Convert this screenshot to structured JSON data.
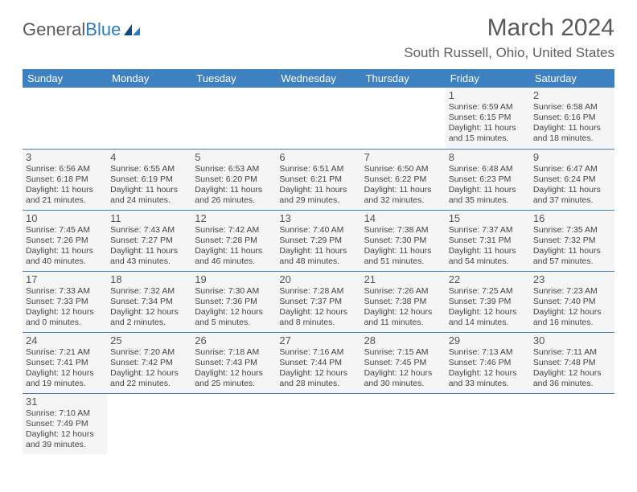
{
  "logo": {
    "text1": "General",
    "text2": "Blue"
  },
  "title": "March 2024",
  "location": "South Russell, Ohio, United States",
  "colors": {
    "header_bg": "#3e81c0",
    "header_fg": "#ffffff",
    "cell_bg": "#f5f5f5",
    "border": "#3e81c0",
    "text": "#444444",
    "logo_blue": "#2b7bbf",
    "title_color": "#5a5a5a"
  },
  "daynames": [
    "Sunday",
    "Monday",
    "Tuesday",
    "Wednesday",
    "Thursday",
    "Friday",
    "Saturday"
  ],
  "weeks": [
    [
      null,
      null,
      null,
      null,
      null,
      {
        "n": "1",
        "sr": "Sunrise: 6:59 AM",
        "ss": "Sunset: 6:15 PM",
        "d1": "Daylight: 11 hours",
        "d2": "and 15 minutes."
      },
      {
        "n": "2",
        "sr": "Sunrise: 6:58 AM",
        "ss": "Sunset: 6:16 PM",
        "d1": "Daylight: 11 hours",
        "d2": "and 18 minutes."
      }
    ],
    [
      {
        "n": "3",
        "sr": "Sunrise: 6:56 AM",
        "ss": "Sunset: 6:18 PM",
        "d1": "Daylight: 11 hours",
        "d2": "and 21 minutes."
      },
      {
        "n": "4",
        "sr": "Sunrise: 6:55 AM",
        "ss": "Sunset: 6:19 PM",
        "d1": "Daylight: 11 hours",
        "d2": "and 24 minutes."
      },
      {
        "n": "5",
        "sr": "Sunrise: 6:53 AM",
        "ss": "Sunset: 6:20 PM",
        "d1": "Daylight: 11 hours",
        "d2": "and 26 minutes."
      },
      {
        "n": "6",
        "sr": "Sunrise: 6:51 AM",
        "ss": "Sunset: 6:21 PM",
        "d1": "Daylight: 11 hours",
        "d2": "and 29 minutes."
      },
      {
        "n": "7",
        "sr": "Sunrise: 6:50 AM",
        "ss": "Sunset: 6:22 PM",
        "d1": "Daylight: 11 hours",
        "d2": "and 32 minutes."
      },
      {
        "n": "8",
        "sr": "Sunrise: 6:48 AM",
        "ss": "Sunset: 6:23 PM",
        "d1": "Daylight: 11 hours",
        "d2": "and 35 minutes."
      },
      {
        "n": "9",
        "sr": "Sunrise: 6:47 AM",
        "ss": "Sunset: 6:24 PM",
        "d1": "Daylight: 11 hours",
        "d2": "and 37 minutes."
      }
    ],
    [
      {
        "n": "10",
        "sr": "Sunrise: 7:45 AM",
        "ss": "Sunset: 7:26 PM",
        "d1": "Daylight: 11 hours",
        "d2": "and 40 minutes."
      },
      {
        "n": "11",
        "sr": "Sunrise: 7:43 AM",
        "ss": "Sunset: 7:27 PM",
        "d1": "Daylight: 11 hours",
        "d2": "and 43 minutes."
      },
      {
        "n": "12",
        "sr": "Sunrise: 7:42 AM",
        "ss": "Sunset: 7:28 PM",
        "d1": "Daylight: 11 hours",
        "d2": "and 46 minutes."
      },
      {
        "n": "13",
        "sr": "Sunrise: 7:40 AM",
        "ss": "Sunset: 7:29 PM",
        "d1": "Daylight: 11 hours",
        "d2": "and 48 minutes."
      },
      {
        "n": "14",
        "sr": "Sunrise: 7:38 AM",
        "ss": "Sunset: 7:30 PM",
        "d1": "Daylight: 11 hours",
        "d2": "and 51 minutes."
      },
      {
        "n": "15",
        "sr": "Sunrise: 7:37 AM",
        "ss": "Sunset: 7:31 PM",
        "d1": "Daylight: 11 hours",
        "d2": "and 54 minutes."
      },
      {
        "n": "16",
        "sr": "Sunrise: 7:35 AM",
        "ss": "Sunset: 7:32 PM",
        "d1": "Daylight: 11 hours",
        "d2": "and 57 minutes."
      }
    ],
    [
      {
        "n": "17",
        "sr": "Sunrise: 7:33 AM",
        "ss": "Sunset: 7:33 PM",
        "d1": "Daylight: 12 hours",
        "d2": "and 0 minutes."
      },
      {
        "n": "18",
        "sr": "Sunrise: 7:32 AM",
        "ss": "Sunset: 7:34 PM",
        "d1": "Daylight: 12 hours",
        "d2": "and 2 minutes."
      },
      {
        "n": "19",
        "sr": "Sunrise: 7:30 AM",
        "ss": "Sunset: 7:36 PM",
        "d1": "Daylight: 12 hours",
        "d2": "and 5 minutes."
      },
      {
        "n": "20",
        "sr": "Sunrise: 7:28 AM",
        "ss": "Sunset: 7:37 PM",
        "d1": "Daylight: 12 hours",
        "d2": "and 8 minutes."
      },
      {
        "n": "21",
        "sr": "Sunrise: 7:26 AM",
        "ss": "Sunset: 7:38 PM",
        "d1": "Daylight: 12 hours",
        "d2": "and 11 minutes."
      },
      {
        "n": "22",
        "sr": "Sunrise: 7:25 AM",
        "ss": "Sunset: 7:39 PM",
        "d1": "Daylight: 12 hours",
        "d2": "and 14 minutes."
      },
      {
        "n": "23",
        "sr": "Sunrise: 7:23 AM",
        "ss": "Sunset: 7:40 PM",
        "d1": "Daylight: 12 hours",
        "d2": "and 16 minutes."
      }
    ],
    [
      {
        "n": "24",
        "sr": "Sunrise: 7:21 AM",
        "ss": "Sunset: 7:41 PM",
        "d1": "Daylight: 12 hours",
        "d2": "and 19 minutes."
      },
      {
        "n": "25",
        "sr": "Sunrise: 7:20 AM",
        "ss": "Sunset: 7:42 PM",
        "d1": "Daylight: 12 hours",
        "d2": "and 22 minutes."
      },
      {
        "n": "26",
        "sr": "Sunrise: 7:18 AM",
        "ss": "Sunset: 7:43 PM",
        "d1": "Daylight: 12 hours",
        "d2": "and 25 minutes."
      },
      {
        "n": "27",
        "sr": "Sunrise: 7:16 AM",
        "ss": "Sunset: 7:44 PM",
        "d1": "Daylight: 12 hours",
        "d2": "and 28 minutes."
      },
      {
        "n": "28",
        "sr": "Sunrise: 7:15 AM",
        "ss": "Sunset: 7:45 PM",
        "d1": "Daylight: 12 hours",
        "d2": "and 30 minutes."
      },
      {
        "n": "29",
        "sr": "Sunrise: 7:13 AM",
        "ss": "Sunset: 7:46 PM",
        "d1": "Daylight: 12 hours",
        "d2": "and 33 minutes."
      },
      {
        "n": "30",
        "sr": "Sunrise: 7:11 AM",
        "ss": "Sunset: 7:48 PM",
        "d1": "Daylight: 12 hours",
        "d2": "and 36 minutes."
      }
    ],
    [
      {
        "n": "31",
        "sr": "Sunrise: 7:10 AM",
        "ss": "Sunset: 7:49 PM",
        "d1": "Daylight: 12 hours",
        "d2": "and 39 minutes."
      },
      null,
      null,
      null,
      null,
      null,
      null
    ]
  ]
}
